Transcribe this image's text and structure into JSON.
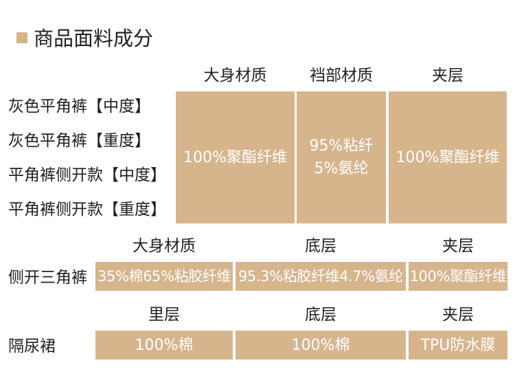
{
  "colors": {
    "accent": "#d6b48c",
    "cell_text": "#ffffff",
    "text": "#1f1f1f"
  },
  "title": "商品面料成分",
  "section1": {
    "headers": [
      "大身材质",
      "裆部材质",
      "夹层"
    ],
    "products": [
      "灰色平角裤【中度】",
      "灰色平角裤【重度】",
      "平角裤侧开款【中度】",
      "平角裤侧开款【重度】"
    ],
    "values": {
      "body": "100%聚酯纤维",
      "crotch": [
        "95%粘纤",
        "5%氨纶"
      ],
      "interlayer": "100%聚酯纤维"
    }
  },
  "section2": {
    "headers": [
      "大身材质",
      "底层",
      "夹层"
    ],
    "product": "侧开三角裤",
    "values": [
      "35%棉65%粘胶纤维",
      "95.3%粘胶纤维4.7%氨纶",
      "100%聚酯纤维"
    ]
  },
  "section3": {
    "headers": [
      "里层",
      "底层",
      "夹层"
    ],
    "product": "隔尿裙",
    "values": [
      "100%棉",
      "100%棉",
      "TPU防水膜"
    ]
  }
}
